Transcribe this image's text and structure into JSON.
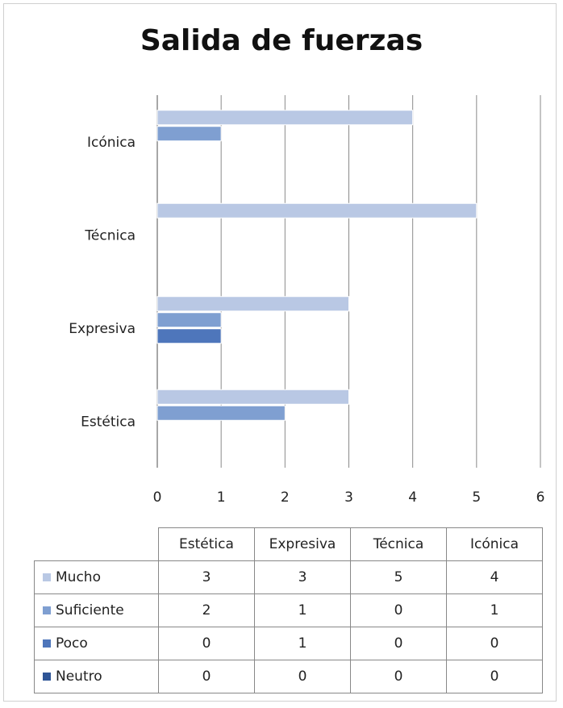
{
  "chart_data": {
    "type": "bar",
    "orientation": "horizontal",
    "title": "Salida de fuerzas",
    "categories": [
      "Estética",
      "Expresiva",
      "Técnica",
      "Icónica"
    ],
    "series": [
      {
        "name": "Mucho",
        "values": [
          3,
          3,
          5,
          4
        ],
        "color": "#b9c8e4"
      },
      {
        "name": "Suficiente",
        "values": [
          2,
          1,
          0,
          1
        ],
        "color": "#7f9fd1"
      },
      {
        "name": "Poco",
        "values": [
          0,
          1,
          0,
          0
        ],
        "color": "#4e76bb"
      },
      {
        "name": "Neutro",
        "values": [
          0,
          0,
          0,
          0
        ],
        "color": "#2f5596"
      }
    ],
    "xlim": [
      0,
      6
    ],
    "xticks": [
      "0",
      "1",
      "2",
      "3",
      "4",
      "5",
      "6"
    ],
    "grid": true,
    "legend": "data table below chart"
  }
}
